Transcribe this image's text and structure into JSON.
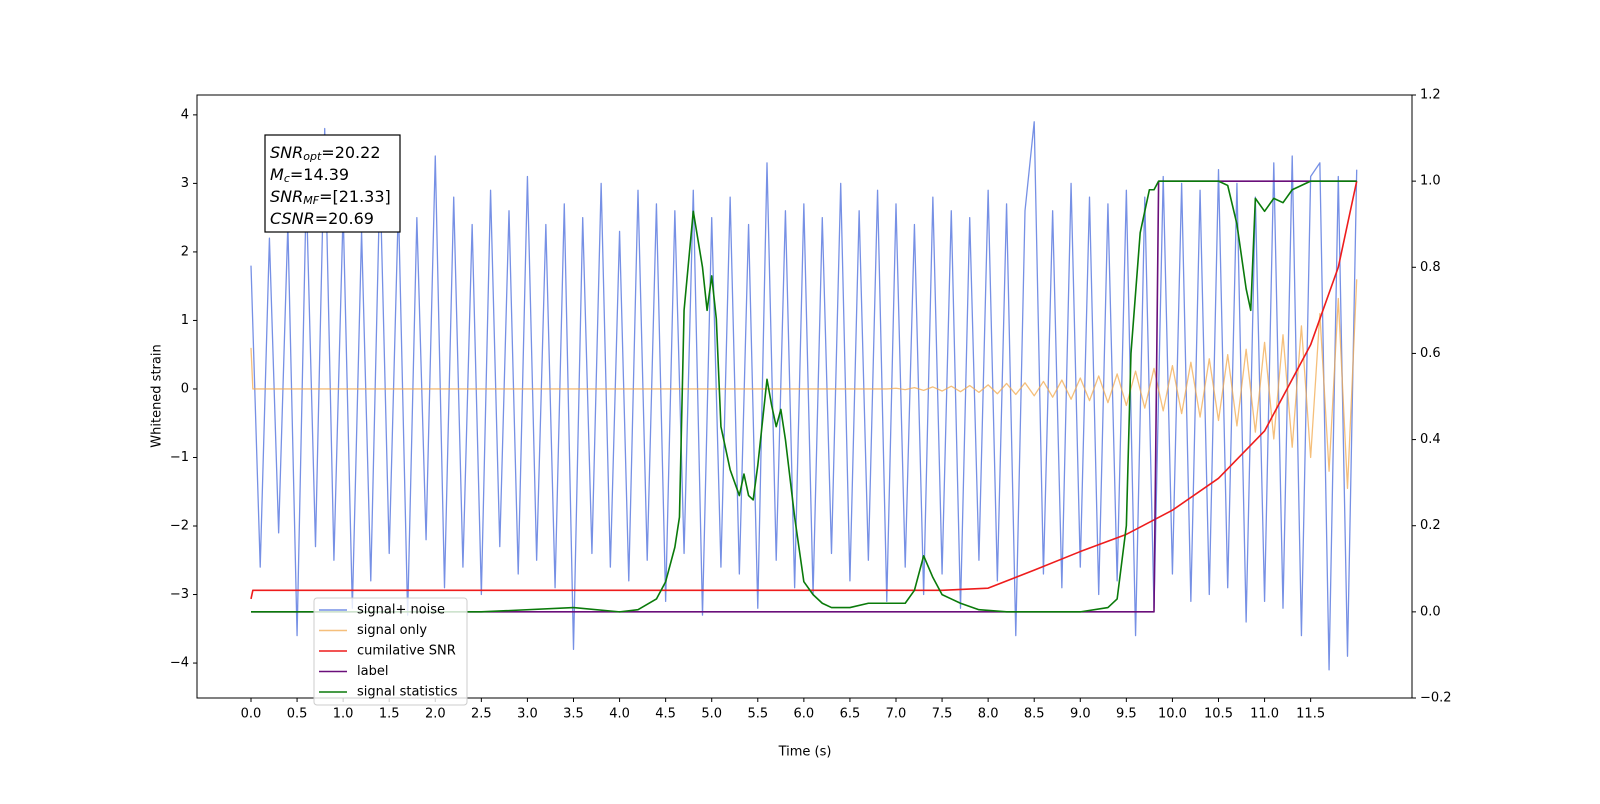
{
  "chart_data": {
    "type": "line",
    "xlabel": "Time (s)",
    "ylabel": "Whitened strain",
    "xlim": [
      -0.586,
      12.6
    ],
    "ylim": [
      -4.51,
      4.29
    ],
    "y2lim": [
      -0.2,
      1.2
    ],
    "xticks": [
      {
        "value": 0,
        "label": "0.0"
      },
      {
        "value": 0.5,
        "label": "0.5"
      },
      {
        "value": 1,
        "label": "1.0"
      },
      {
        "value": 1.5,
        "label": "1.5"
      },
      {
        "value": 2,
        "label": "2.0"
      },
      {
        "value": 2.5,
        "label": "2.5"
      },
      {
        "value": 3,
        "label": "3.0"
      },
      {
        "value": 3.5,
        "label": "3.5"
      },
      {
        "value": 4,
        "label": "4.0"
      },
      {
        "value": 4.5,
        "label": "4.5"
      },
      {
        "value": 5,
        "label": "5.0"
      },
      {
        "value": 5.5,
        "label": "5.5"
      },
      {
        "value": 6,
        "label": "6.0"
      },
      {
        "value": 6.5,
        "label": "6.5"
      },
      {
        "value": 7,
        "label": "7.0"
      },
      {
        "value": 7.5,
        "label": "7.5"
      },
      {
        "value": 8,
        "label": "8.0"
      },
      {
        "value": 8.5,
        "label": "8.5"
      },
      {
        "value": 9,
        "label": "9.0"
      },
      {
        "value": 9.5,
        "label": "9.5"
      },
      {
        "value": 10,
        "label": "10.0"
      },
      {
        "value": 10.5,
        "label": "10.5"
      },
      {
        "value": 11,
        "label": "11.0"
      },
      {
        "value": 11.5,
        "label": "11.5"
      }
    ],
    "yticks": [
      {
        "value": -4,
        "label": "−4"
      },
      {
        "value": -3,
        "label": "−3"
      },
      {
        "value": -2,
        "label": "−2"
      },
      {
        "value": -1,
        "label": "−1"
      },
      0,
      1,
      2,
      3,
      4
    ],
    "y2ticks": [
      {
        "value": -0.2,
        "label": "−0.2"
      },
      {
        "value": 0,
        "label": "0.0"
      },
      {
        "value": 0.2,
        "label": "0.2"
      },
      {
        "value": 0.4,
        "label": "0.4"
      },
      {
        "value": 0.6,
        "label": "0.6"
      },
      {
        "value": 0.8,
        "label": "0.8"
      },
      {
        "value": 1,
        "label": "1.0"
      },
      {
        "value": 1.2,
        "label": "1.2"
      }
    ],
    "legend": "lower left",
    "annotation": [
      {
        "main": "SNR",
        "sub": "opt",
        "rest": "=20.22"
      },
      {
        "main": "M",
        "sub": "c",
        "rest": "=14.39"
      },
      {
        "main": "SNR",
        "sub": "MF",
        "rest": "=[21.33]"
      },
      {
        "main": "CSNR",
        "sub": null,
        "rest": "=20.69"
      }
    ],
    "series": [
      {
        "name": "signal+ noise",
        "color": "#6f8ae4",
        "alpha": 0.95,
        "x": [
          0.0,
          0.1,
          0.2,
          0.3,
          0.4,
          0.5,
          0.6,
          0.7,
          0.8,
          0.9,
          1.0,
          1.1,
          1.2,
          1.3,
          1.4,
          1.5,
          1.6,
          1.7,
          1.8,
          1.9,
          2.0,
          2.1,
          2.2,
          2.3,
          2.4,
          2.5,
          2.6,
          2.7,
          2.8,
          2.9,
          3.0,
          3.1,
          3.2,
          3.3,
          3.4,
          3.5,
          3.6,
          3.7,
          3.8,
          3.9,
          4.0,
          4.1,
          4.2,
          4.3,
          4.4,
          4.5,
          4.6,
          4.7,
          4.8,
          4.9,
          5.0,
          5.1,
          5.2,
          5.3,
          5.4,
          5.5,
          5.6,
          5.7,
          5.8,
          5.9,
          6.0,
          6.1,
          6.2,
          6.3,
          6.4,
          6.5,
          6.6,
          6.7,
          6.8,
          6.9,
          7.0,
          7.1,
          7.2,
          7.3,
          7.4,
          7.5,
          7.6,
          7.7,
          7.8,
          7.9,
          8.0,
          8.1,
          8.2,
          8.3,
          8.4,
          8.5,
          8.6,
          8.7,
          8.8,
          8.9,
          9.0,
          9.1,
          9.2,
          9.3,
          9.4,
          9.5,
          9.6,
          9.7,
          9.8,
          9.9,
          10.0,
          10.1,
          10.2,
          10.3,
          10.4,
          10.5,
          10.6,
          10.7,
          10.8,
          10.9,
          11.0,
          11.1,
          11.2,
          11.3,
          11.4,
          11.5,
          11.6,
          11.7,
          11.8,
          11.9,
          12.0
        ],
        "values": [
          1.8,
          -2.6,
          2.2,
          -2.1,
          2.4,
          -3.6,
          2.9,
          -2.3,
          3.8,
          -2.5,
          2.6,
          -3.2,
          2.3,
          -2.8,
          3.1,
          -2.4,
          2.7,
          -3.3,
          2.5,
          -2.2,
          3.4,
          -2.9,
          2.8,
          -2.6,
          2.4,
          -3.0,
          2.9,
          -2.3,
          2.6,
          -2.7,
          3.1,
          -2.5,
          2.4,
          -2.9,
          2.7,
          -3.8,
          2.5,
          -2.4,
          3.0,
          -2.6,
          2.3,
          -2.8,
          2.9,
          -2.5,
          2.7,
          -3.1,
          2.6,
          -2.4,
          2.9,
          -3.3,
          2.5,
          -2.6,
          2.8,
          -2.7,
          2.4,
          -3.2,
          3.3,
          -2.5,
          2.6,
          -2.9,
          2.7,
          -3.0,
          2.5,
          -2.4,
          3.0,
          -2.8,
          2.6,
          -2.5,
          2.9,
          -3.1,
          2.7,
          -2.6,
          2.4,
          -3.0,
          2.8,
          -2.7,
          2.6,
          -3.2,
          2.5,
          -2.5,
          2.9,
          -2.8,
          2.7,
          -3.6,
          2.6,
          3.9,
          -2.7,
          2.6,
          -2.9,
          3.0,
          -2.6,
          2.8,
          -3.0,
          2.7,
          -2.8,
          2.9,
          -3.6,
          2.8,
          -3.2,
          3.1,
          -2.7,
          3.0,
          -3.1,
          2.9,
          -3.0,
          3.2,
          -2.9,
          3.0,
          -3.4,
          2.8,
          -3.1,
          3.3,
          -3.2,
          3.4,
          -3.6,
          3.1,
          3.3,
          -4.1,
          3.1,
          -3.9,
          3.2
        ]
      },
      {
        "name": "signal only",
        "color": "#f2a94f",
        "alpha": 0.75,
        "x": [
          0,
          0.02,
          6.9,
          7.0,
          7.1,
          7.2,
          7.3,
          7.4,
          7.5,
          7.6,
          7.7,
          7.8,
          7.9,
          8.0,
          8.1,
          8.2,
          8.3,
          8.4,
          8.5,
          8.6,
          8.7,
          8.8,
          8.9,
          9.0,
          9.1,
          9.2,
          9.3,
          9.4,
          9.5,
          9.6,
          9.7,
          9.8,
          9.9,
          10.0,
          10.1,
          10.2,
          10.3,
          10.4,
          10.5,
          10.6,
          10.7,
          10.8,
          10.9,
          11.0,
          11.1,
          11.2,
          11.3,
          11.4,
          11.5,
          11.6,
          11.7,
          11.8,
          11.9,
          12.0
        ],
        "values": [
          0.6,
          0,
          0,
          0.01,
          -0.01,
          0.02,
          -0.02,
          0.03,
          -0.03,
          0.04,
          -0.04,
          0.05,
          -0.05,
          0.06,
          -0.07,
          0.08,
          -0.08,
          0.09,
          -0.1,
          0.11,
          -0.12,
          0.13,
          -0.15,
          0.16,
          -0.17,
          0.19,
          -0.2,
          0.22,
          -0.24,
          0.26,
          -0.28,
          0.3,
          -0.32,
          0.34,
          -0.36,
          0.39,
          -0.41,
          0.44,
          -0.46,
          0.5,
          -0.54,
          0.58,
          -0.63,
          0.68,
          -0.73,
          0.79,
          -0.85,
          0.92,
          -1.0,
          1.1,
          -1.2,
          1.32,
          -1.45,
          1.6
        ]
      },
      {
        "name": "cumilative SNR",
        "color": "#ee1c1c",
        "axis": "y2",
        "x": [
          0,
          0.02,
          7.5,
          8.0,
          8.5,
          9.0,
          9.5,
          10.0,
          10.5,
          11.0,
          11.5,
          11.8,
          12.0
        ],
        "values": [
          0.03,
          0.05,
          0.05,
          0.055,
          0.097,
          0.14,
          0.18,
          0.236,
          0.31,
          0.42,
          0.62,
          0.8,
          1.0
        ]
      },
      {
        "name": "label",
        "color": "#6a0f7a",
        "axis": "y2",
        "x": [
          0,
          9.8,
          9.85,
          12.0
        ],
        "values": [
          0,
          0,
          1,
          1
        ]
      },
      {
        "name": "signal statistics",
        "color": "#0a7a0a",
        "axis": "y2",
        "x": [
          0,
          2.5,
          3.5,
          4.0,
          4.2,
          4.4,
          4.5,
          4.6,
          4.65,
          4.7,
          4.8,
          4.9,
          4.95,
          5.0,
          5.05,
          5.1,
          5.2,
          5.3,
          5.35,
          5.4,
          5.45,
          5.5,
          5.6,
          5.65,
          5.7,
          5.75,
          5.8,
          5.9,
          6.0,
          6.1,
          6.2,
          6.3,
          6.5,
          6.7,
          6.9,
          7.1,
          7.2,
          7.3,
          7.4,
          7.5,
          7.6,
          7.7,
          7.9,
          8.2,
          9.0,
          9.3,
          9.4,
          9.5,
          9.55,
          9.65,
          9.75,
          9.8,
          9.85,
          10.5,
          10.6,
          10.7,
          10.8,
          10.85,
          10.9,
          11.0,
          11.1,
          11.2,
          11.3,
          11.5,
          12.0
        ],
        "values": [
          0,
          0,
          0.01,
          0,
          0.005,
          0.03,
          0.07,
          0.15,
          0.22,
          0.7,
          0.93,
          0.8,
          0.7,
          0.78,
          0.68,
          0.43,
          0.33,
          0.27,
          0.32,
          0.27,
          0.26,
          0.34,
          0.54,
          0.48,
          0.43,
          0.47,
          0.4,
          0.22,
          0.07,
          0.04,
          0.02,
          0.01,
          0.01,
          0.02,
          0.02,
          0.02,
          0.05,
          0.13,
          0.08,
          0.04,
          0.03,
          0.02,
          0.005,
          0,
          0,
          0.01,
          0.03,
          0.2,
          0.6,
          0.88,
          0.98,
          0.98,
          1.0,
          1.0,
          0.99,
          0.9,
          0.75,
          0.7,
          0.96,
          0.93,
          0.96,
          0.95,
          0.98,
          1.0,
          1.0
        ]
      }
    ]
  }
}
